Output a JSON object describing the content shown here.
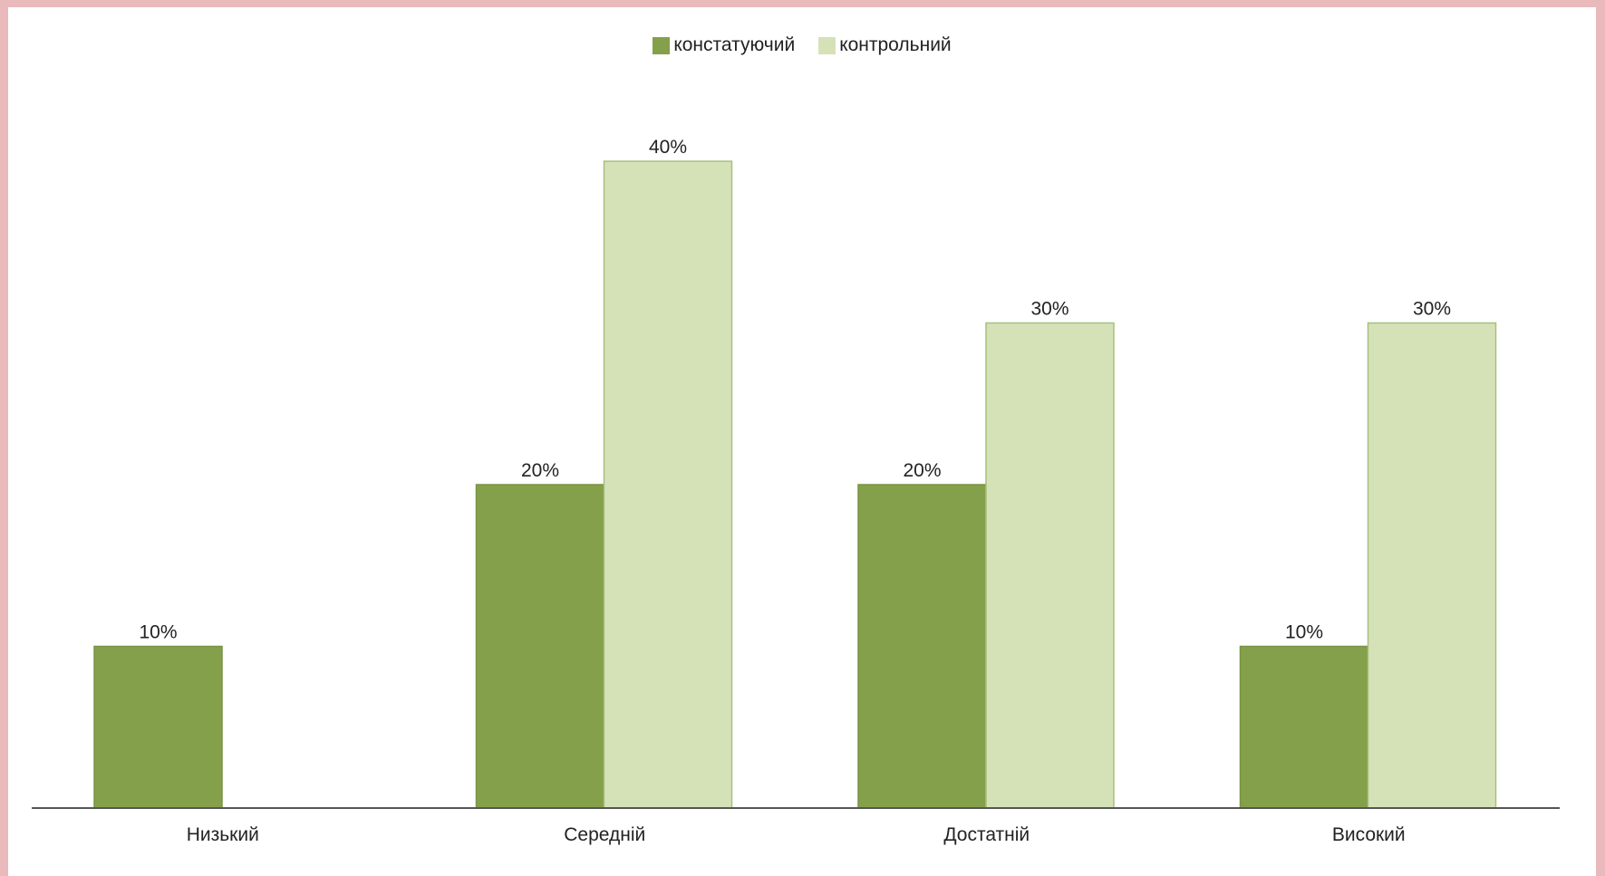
{
  "chart_data": {
    "type": "bar",
    "categories": [
      "Низький",
      "Середній",
      "Достатній",
      "Високий"
    ],
    "series": [
      {
        "name": "констатуючий",
        "values": [
          10,
          20,
          20,
          10
        ],
        "labels": [
          "10%",
          "20%",
          "20%",
          "10%"
        ],
        "color": "#84a04a"
      },
      {
        "name": "контрольний",
        "values": [
          0,
          40,
          30,
          30
        ],
        "labels": [
          "",
          "40%",
          "30%",
          "30%"
        ],
        "color": "#d5e2b8"
      }
    ],
    "ylim": [
      0,
      40
    ],
    "grid": false,
    "legend": "top-center",
    "title": "",
    "xlabel": "",
    "ylabel": ""
  }
}
